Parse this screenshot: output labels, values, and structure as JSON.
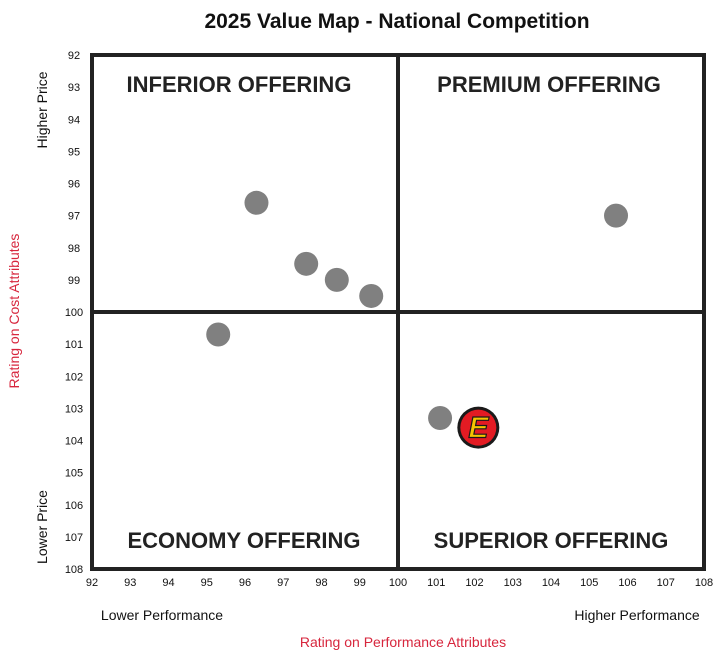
{
  "chart_data": {
    "type": "scatter",
    "title": "2025 Value Map - National Competition",
    "xlabel": "Rating on Performance Attributes",
    "ylabel": "Rating on Cost Attributes",
    "x_low_label": "Lower Performance",
    "x_high_label": "Higher Performance",
    "y_top_label": "Higher Price",
    "y_bottom_label": "Lower Price",
    "xlim": [
      92,
      108
    ],
    "ylim": [
      92,
      108
    ],
    "y_inverted": true,
    "x_ticks": [
      "92",
      "93",
      "94",
      "95",
      "96",
      "97",
      "98",
      "99",
      "100",
      "101",
      "102",
      "103",
      "104",
      "105",
      "106",
      "107",
      "108"
    ],
    "y_ticks": [
      "92",
      "93",
      "94",
      "95",
      "96",
      "97",
      "98",
      "99",
      "100",
      "101",
      "102",
      "103",
      "104",
      "105",
      "106",
      "107",
      "108"
    ],
    "midline_x": 100,
    "midline_y": 100,
    "quadrants": {
      "top_left": "INFERIOR OFFERING",
      "top_right": "PREMIUM OFFERING",
      "bottom_left": "ECONOMY OFFERING",
      "bottom_right": "SUPERIOR OFFERING"
    },
    "points": [
      {
        "x": 96.3,
        "y": 96.6
      },
      {
        "x": 97.6,
        "y": 98.5
      },
      {
        "x": 98.4,
        "y": 99.0
      },
      {
        "x": 99.3,
        "y": 99.5
      },
      {
        "x": 105.7,
        "y": 97.0
      },
      {
        "x": 95.3,
        "y": 100.7
      },
      {
        "x": 101.1,
        "y": 103.3
      }
    ],
    "highlight": {
      "x": 102.1,
      "y": 103.6,
      "icon": "e-logo-icon",
      "letter": "E",
      "colors": {
        "ring": "#1a1a1a",
        "fill": "#e31b23",
        "letter": "#f5c400"
      }
    },
    "colors": {
      "point": "#808080",
      "axis_title": "#d7263d",
      "frame": "#222222"
    },
    "grid": false
  }
}
